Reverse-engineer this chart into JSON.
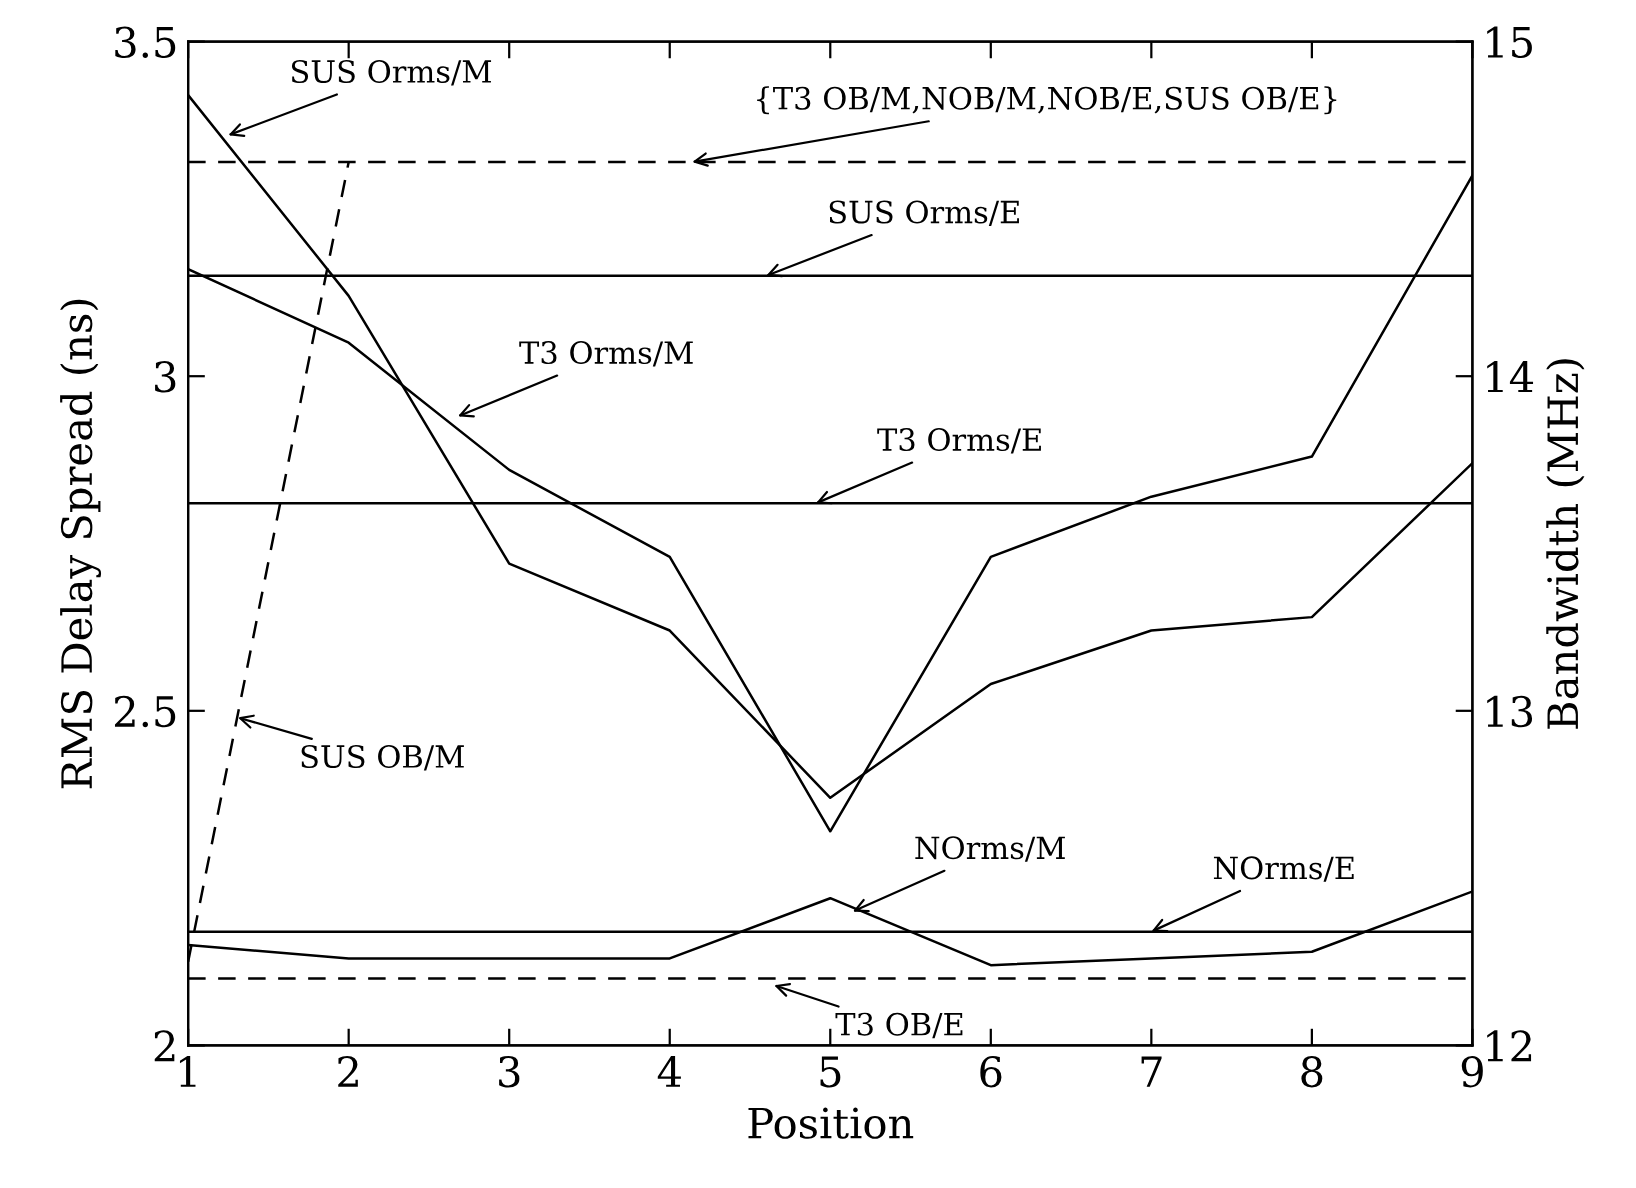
{
  "chart_data": {
    "type": "line",
    "xlabel": "Position",
    "ylabel": "RMS Delay Spread (ns)",
    "y2label": "Bandwidth (MHz)",
    "x": [
      1,
      2,
      3,
      4,
      5,
      6,
      7,
      8,
      9
    ],
    "xlim": [
      1,
      9
    ],
    "xticks": [
      1,
      2,
      3,
      4,
      5,
      6,
      7,
      8,
      9
    ],
    "ylim": [
      2,
      3.5
    ],
    "yticks": [
      2,
      2.5,
      3,
      3.5
    ],
    "y2lim": [
      12,
      15
    ],
    "y2ticks": [
      12,
      13,
      14,
      15
    ],
    "grid": false,
    "marker": "none",
    "series": [
      {
        "color": "#000000",
        "line_style": "solid",
        "values": [
          3.42,
          3.12,
          2.72,
          2.62,
          2.37,
          2.54,
          2.62,
          2.64,
          2.87
        ]
      },
      {
        "color": "#000000",
        "line_style": "solid",
        "values": [
          3.16,
          3.05,
          2.86,
          2.73,
          2.32,
          2.73,
          2.82,
          2.88,
          3.3
        ]
      },
      {
        "color": "#000000",
        "line_style": "solid",
        "values": [
          3.15,
          3.15,
          3.15,
          3.15,
          3.15,
          3.15,
          3.15,
          3.15,
          3.15
        ]
      },
      {
        "color": "#000000",
        "line_style": "solid",
        "values": [
          2.81,
          2.81,
          2.81,
          2.81,
          2.81,
          2.81,
          2.81,
          2.81,
          2.81
        ]
      },
      {
        "color": "#000000",
        "line_style": "solid",
        "values": [
          2.15,
          2.13,
          2.13,
          2.13,
          2.22,
          2.12,
          2.13,
          2.14,
          2.23
        ]
      },
      {
        "color": "#000000",
        "line_style": "solid",
        "values": [
          2.17,
          2.17,
          2.17,
          2.17,
          2.17,
          2.17,
          2.17,
          2.17,
          2.17
        ]
      },
      {
        "color": "#000000",
        "line_style": "dashed",
        "axis": "y2",
        "values": [
          14.64,
          14.64,
          14.64,
          14.64,
          14.64,
          14.64,
          14.64,
          14.64,
          14.64
        ]
      },
      {
        "color": "#000000",
        "line_style": "dashed",
        "axis": "y2",
        "values": [
          12.2,
          12.2,
          12.2,
          12.2,
          12.2,
          12.2,
          12.2,
          12.2,
          12.2
        ]
      },
      {
        "color": "#000000",
        "line_style": "dashed",
        "axis": "y2",
        "values": [
          12.25,
          14.64,
          null,
          null,
          null,
          null,
          null,
          null,
          null
        ]
      }
    ],
    "annotations": [
      {
        "text": "SUS Orms/M",
        "x": 1.25,
        "y": 3.36
      },
      {
        "text": "{T3 OB/M,NOB/M,NOB/E,SUS OB/E}",
        "x": 4.14,
        "y": 3.32
      },
      {
        "text": "SUS Orms/E",
        "x": 4.6,
        "y": 3.15
      },
      {
        "text": "T3 Orms/M",
        "x": 2.68,
        "y": 2.94
      },
      {
        "text": "T3 Orms/E",
        "x": 4.91,
        "y": 2.81
      },
      {
        "text": "SUS OB/M",
        "x": 1.31,
        "y": 2.49
      },
      {
        "text": "NOrms/M",
        "x": 5.14,
        "y": 2.2
      },
      {
        "text": "NOrms/E",
        "x": 7.0,
        "y": 2.17
      },
      {
        "text": "T3 OB/E",
        "x": 4.65,
        "y": 2.09
      }
    ]
  }
}
